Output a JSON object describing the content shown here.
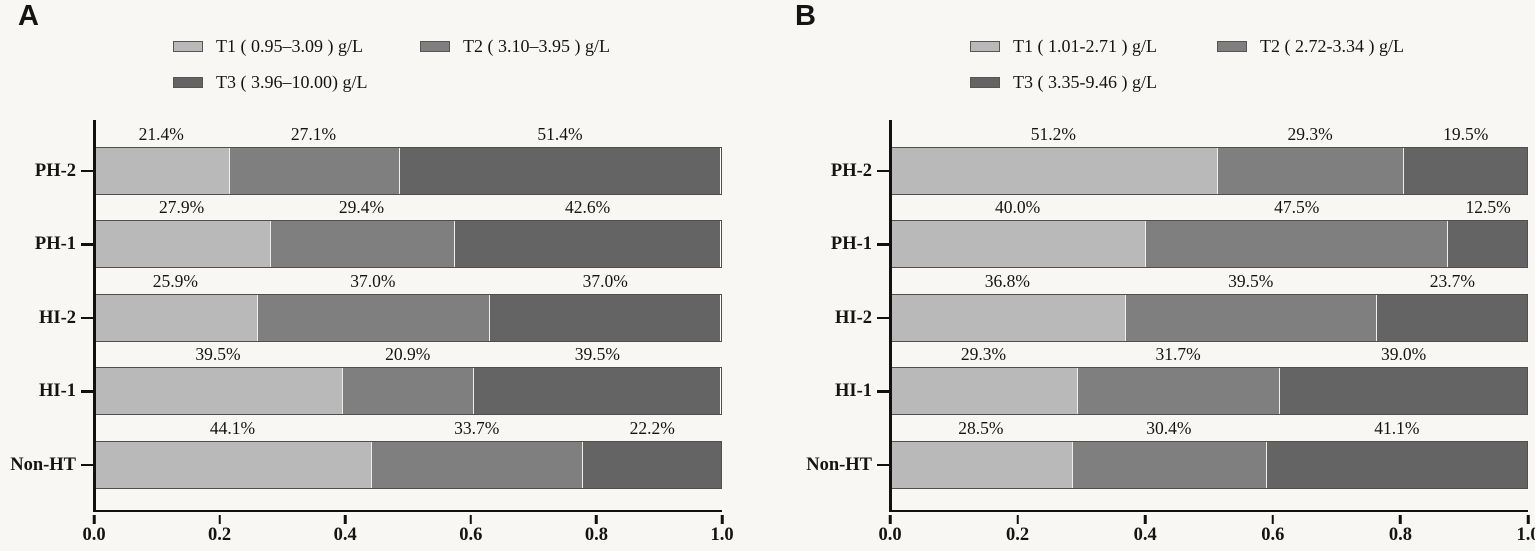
{
  "colors": {
    "t1": "#b9b9b9",
    "t2": "#7f7f7f",
    "t3": "#646464",
    "axis": "#111111",
    "bar_border": "#4f4f4f",
    "background": "#f8f7f3",
    "text": "#141414"
  },
  "chart_data": [
    {
      "type": "bar",
      "panel": "A",
      "orientation": "horizontal",
      "stacked": true,
      "grid": false,
      "legend_position": "top",
      "categories": [
        "PH-2",
        "PH-1",
        "HI-2",
        "HI-1",
        "Non-HT"
      ],
      "series": [
        {
          "key": "t1",
          "name": "T1 ( 0.95–3.09 ) g/L",
          "values": [
            21.4,
            27.9,
            25.9,
            39.5,
            44.1
          ]
        },
        {
          "key": "t2",
          "name": "T2 ( 3.10–3.95 ) g/L",
          "values": [
            27.1,
            29.4,
            37.0,
            20.9,
            33.7
          ]
        },
        {
          "key": "t3",
          "name": "T3 ( 3.96–10.00) g/L",
          "values": [
            51.4,
            42.6,
            37.0,
            39.5,
            22.2
          ]
        }
      ],
      "value_label_format": "one_decimal_percent",
      "x_ticks": [
        "0.0",
        "0.2",
        "0.4",
        "0.6",
        "0.8",
        "1.0"
      ],
      "xlim": [
        0,
        1
      ],
      "xlabel": "",
      "ylabel": ""
    },
    {
      "type": "bar",
      "panel": "B",
      "orientation": "horizontal",
      "stacked": true,
      "grid": false,
      "legend_position": "top",
      "categories": [
        "PH-2",
        "PH-1",
        "HI-2",
        "HI-1",
        "Non-HT"
      ],
      "series": [
        {
          "key": "t1",
          "name": "T1 ( 1.01-2.71 ) g/L",
          "values": [
            51.2,
            40.0,
            36.8,
            29.3,
            28.5
          ]
        },
        {
          "key": "t2",
          "name": "T2 ( 2.72-3.34 ) g/L",
          "values": [
            29.3,
            47.5,
            39.5,
            31.7,
            30.4
          ]
        },
        {
          "key": "t3",
          "name": "T3 ( 3.35-9.46 ) g/L",
          "values": [
            19.5,
            12.5,
            23.7,
            39.0,
            41.1
          ]
        }
      ],
      "value_label_format": "one_decimal_percent",
      "x_ticks": [
        "0.0",
        "0.2",
        "0.4",
        "0.6",
        "0.8",
        "1.0"
      ],
      "xlim": [
        0,
        1
      ],
      "xlabel": "",
      "ylabel": ""
    }
  ]
}
